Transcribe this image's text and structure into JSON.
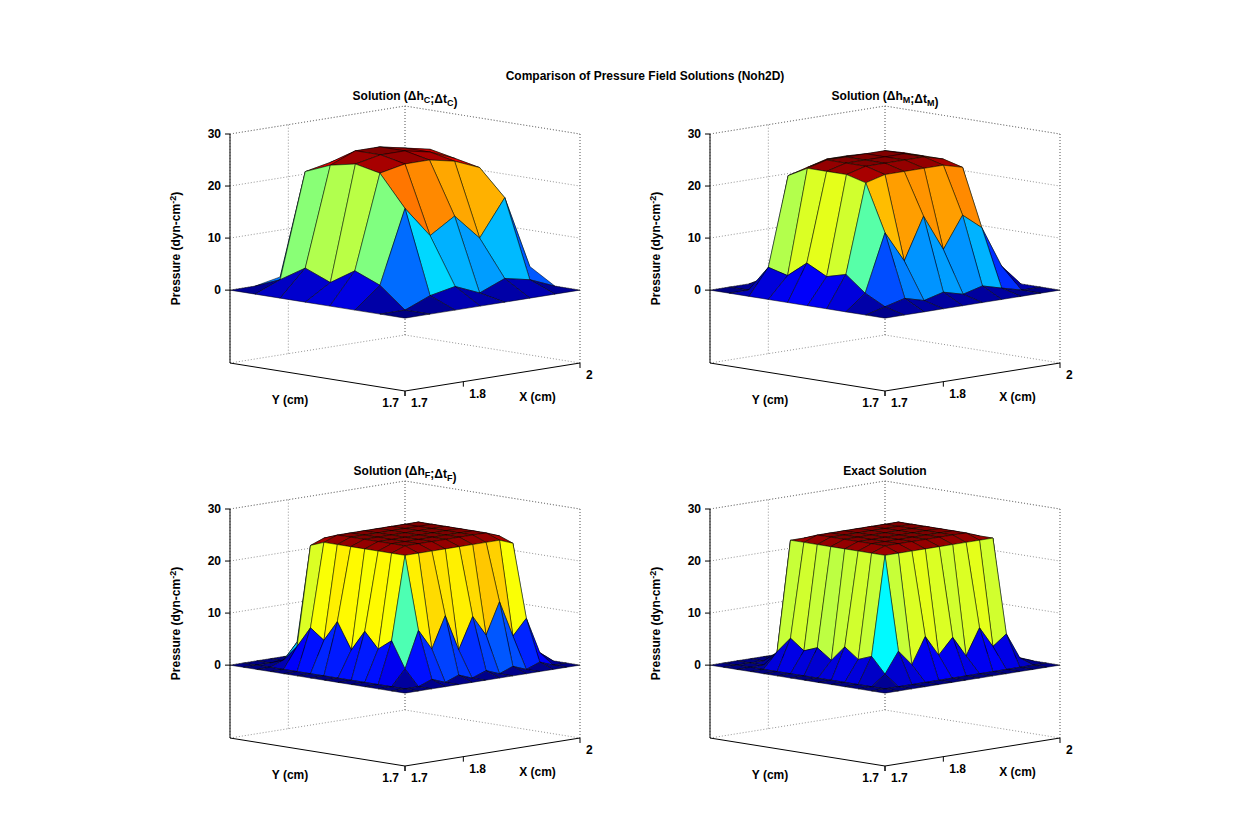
{
  "title": "Comparison of Pressure Field Solutions (Noh2D)",
  "chart_data": [
    {
      "type": "surface",
      "title": "Solution (ΔhC;ΔtC)",
      "x_label": "X (cm)",
      "y_label": "Y (cm)",
      "z_label": "Pressure (dyn-cm-2)",
      "xlim": [
        1.7,
        2
      ],
      "ylim": [
        1.7,
        2
      ],
      "zlim": [
        -14,
        30
      ],
      "xticks": [
        1.7,
        1.8,
        2
      ],
      "yticks": [
        1.7
      ],
      "zticks": [
        0,
        10,
        20,
        30
      ],
      "grid": true,
      "x": [
        1.7,
        1.743,
        1.786,
        1.829,
        1.871,
        1.914,
        1.957,
        2.0
      ],
      "y": [
        1.7,
        1.743,
        1.786,
        1.829,
        1.871,
        1.914,
        1.957,
        2.0
      ],
      "values": [
        [
          0,
          0,
          0,
          0,
          0,
          0,
          0,
          0
        ],
        [
          0,
          0,
          2,
          3,
          1,
          3,
          2,
          0
        ],
        [
          0,
          4,
          18,
          12,
          15,
          10,
          17,
          3
        ],
        [
          0,
          6,
          24,
          25,
          25,
          24,
          22,
          2
        ],
        [
          0,
          3,
          25,
          26,
          26,
          25,
          23,
          4
        ],
        [
          0,
          5,
          24,
          26,
          26,
          25,
          24,
          6
        ],
        [
          0,
          2,
          22,
          23,
          24,
          24,
          20,
          1
        ],
        [
          0,
          0,
          1,
          2,
          1,
          2,
          0,
          0
        ]
      ]
    },
    {
      "type": "surface",
      "title": "Solution (ΔhM;ΔtM)",
      "x_label": "X (cm)",
      "y_label": "Y (cm)",
      "z_label": "Pressure (dyn-cm-2)",
      "xlim": [
        1.7,
        2
      ],
      "ylim": [
        1.7,
        2
      ],
      "zlim": [
        -14,
        30
      ],
      "xticks": [
        1.7,
        1.8,
        2
      ],
      "yticks": [
        1.7
      ],
      "zticks": [
        0,
        10,
        20,
        30
      ],
      "grid": true,
      "x": [
        1.7,
        1.733,
        1.767,
        1.8,
        1.833,
        1.867,
        1.9,
        1.933,
        1.967,
        2.0
      ],
      "y": [
        1.7,
        1.733,
        1.767,
        1.8,
        1.833,
        1.867,
        1.9,
        1.933,
        1.967,
        2.0
      ],
      "values": [
        [
          0,
          0,
          0,
          0,
          0,
          0,
          0,
          0,
          0,
          0
        ],
        [
          0,
          1,
          2,
          1,
          2,
          1,
          2,
          1,
          0,
          0
        ],
        [
          0,
          3,
          14,
          8,
          16,
          9,
          15,
          12,
          4,
          0
        ],
        [
          0,
          6,
          23,
          24,
          24,
          24,
          24,
          23,
          8,
          0
        ],
        [
          0,
          5,
          24,
          25,
          25,
          25,
          25,
          24,
          7,
          0
        ],
        [
          0,
          7,
          24,
          25,
          25,
          25,
          25,
          24,
          6,
          0
        ],
        [
          0,
          4,
          24,
          25,
          25,
          25,
          25,
          24,
          9,
          0
        ],
        [
          0,
          5,
          22,
          23,
          24,
          24,
          23,
          22,
          5,
          0
        ],
        [
          0,
          0,
          2,
          3,
          2,
          3,
          2,
          1,
          0,
          0
        ],
        [
          0,
          0,
          0,
          0,
          0,
          0,
          0,
          0,
          0,
          0
        ]
      ]
    },
    {
      "type": "surface",
      "title": "Solution (ΔhF;ΔtF)",
      "x_label": "X (cm)",
      "y_label": "Y (cm)",
      "z_label": "Pressure (dyn-cm-2)",
      "xlim": [
        1.7,
        2
      ],
      "ylim": [
        1.7,
        2
      ],
      "zlim": [
        -14,
        30
      ],
      "xticks": [
        1.7,
        1.8,
        2
      ],
      "yticks": [
        1.7
      ],
      "zticks": [
        0,
        10,
        20,
        30
      ],
      "grid": true,
      "x": [
        1.7,
        1.723,
        1.746,
        1.769,
        1.792,
        1.815,
        1.838,
        1.862,
        1.885,
        1.908,
        1.931,
        1.954,
        1.977,
        2.0
      ],
      "y": [
        1.7,
        1.723,
        1.746,
        1.769,
        1.792,
        1.815,
        1.838,
        1.862,
        1.885,
        1.908,
        1.931,
        1.954,
        1.977,
        2.0
      ],
      "values": [
        [
          0,
          0,
          0,
          0,
          0,
          0,
          0,
          0,
          0,
          0,
          0,
          0,
          0,
          0
        ],
        [
          0,
          0,
          0,
          1,
          0,
          1,
          0,
          1,
          0,
          1,
          0,
          1,
          0,
          0
        ],
        [
          0,
          0,
          3,
          10,
          6,
          12,
          5,
          11,
          7,
          13,
          6,
          9,
          2,
          0
        ],
        [
          0,
          0,
          8,
          24,
          24,
          24,
          24,
          24,
          24,
          24,
          24,
          23,
          3,
          0
        ],
        [
          0,
          0,
          6,
          24,
          25,
          25,
          25,
          25,
          25,
          25,
          25,
          24,
          5,
          0
        ],
        [
          0,
          0,
          9,
          24,
          25,
          25,
          25,
          25,
          25,
          25,
          25,
          24,
          4,
          0
        ],
        [
          0,
          0,
          5,
          24,
          25,
          25,
          25,
          25,
          25,
          25,
          25,
          24,
          6,
          0
        ],
        [
          0,
          0,
          10,
          24,
          25,
          25,
          25,
          25,
          25,
          25,
          25,
          24,
          3,
          0
        ],
        [
          0,
          0,
          6,
          24,
          25,
          25,
          25,
          25,
          25,
          25,
          25,
          24,
          7,
          0
        ],
        [
          0,
          0,
          8,
          24,
          25,
          25,
          25,
          25,
          25,
          25,
          25,
          24,
          4,
          0
        ],
        [
          0,
          0,
          4,
          23,
          24,
          24,
          24,
          24,
          24,
          24,
          24,
          23,
          5,
          0
        ],
        [
          0,
          0,
          1,
          4,
          2,
          5,
          3,
          4,
          2,
          5,
          3,
          4,
          1,
          0
        ],
        [
          0,
          0,
          0,
          0,
          0,
          0,
          0,
          0,
          0,
          0,
          0,
          0,
          0,
          0
        ],
        [
          0,
          0,
          0,
          0,
          0,
          0,
          0,
          0,
          0,
          0,
          0,
          0,
          0,
          0
        ]
      ]
    },
    {
      "type": "surface",
      "title": "Exact Solution",
      "x_label": "X (cm)",
      "y_label": "Y (cm)",
      "z_label": "Pressure (dyn-cm-2)",
      "xlim": [
        1.7,
        2
      ],
      "ylim": [
        1.7,
        2
      ],
      "zlim": [
        -14,
        30
      ],
      "xticks": [
        1.7,
        1.8,
        2
      ],
      "yticks": [
        1.7
      ],
      "zticks": [
        0,
        10,
        20,
        30
      ],
      "grid": true,
      "x": [
        1.7,
        1.723,
        1.746,
        1.769,
        1.792,
        1.815,
        1.838,
        1.862,
        1.885,
        1.908,
        1.931,
        1.954,
        1.977,
        2.0
      ],
      "y": [
        1.7,
        1.723,
        1.746,
        1.769,
        1.792,
        1.815,
        1.838,
        1.862,
        1.885,
        1.908,
        1.931,
        1.954,
        1.977,
        2.0
      ],
      "values": [
        [
          0,
          0,
          0,
          0,
          0,
          0,
          0,
          0,
          0,
          0,
          0,
          0,
          0,
          0
        ],
        [
          0,
          0,
          0,
          0,
          0,
          0,
          0,
          0,
          0,
          0,
          0,
          0,
          0,
          0
        ],
        [
          0,
          0,
          2,
          6,
          3,
          8,
          4,
          7,
          3,
          8,
          4,
          6,
          1,
          0
        ],
        [
          0,
          0,
          5,
          24,
          24,
          24,
          24,
          24,
          24,
          24,
          24,
          24,
          2,
          0
        ],
        [
          0,
          0,
          4,
          24,
          25,
          25,
          25,
          25,
          25,
          25,
          25,
          24,
          3,
          0
        ],
        [
          0,
          0,
          6,
          24,
          25,
          25,
          25,
          25,
          25,
          25,
          25,
          24,
          2,
          0
        ],
        [
          0,
          0,
          3,
          24,
          25,
          25,
          25,
          25,
          25,
          25,
          25,
          24,
          4,
          0
        ],
        [
          0,
          0,
          5,
          24,
          25,
          25,
          25,
          25,
          25,
          25,
          25,
          24,
          2,
          0
        ],
        [
          0,
          0,
          4,
          24,
          25,
          25,
          25,
          25,
          25,
          25,
          25,
          24,
          3,
          0
        ],
        [
          0,
          0,
          6,
          24,
          25,
          25,
          25,
          25,
          25,
          25,
          25,
          24,
          2,
          0
        ],
        [
          0,
          0,
          3,
          24,
          24,
          24,
          24,
          24,
          24,
          24,
          24,
          24,
          4,
          0
        ],
        [
          0,
          0,
          0,
          2,
          1,
          2,
          1,
          2,
          1,
          2,
          1,
          2,
          0,
          0
        ],
        [
          0,
          0,
          0,
          0,
          0,
          0,
          0,
          0,
          0,
          0,
          0,
          0,
          0,
          0
        ],
        [
          0,
          0,
          0,
          0,
          0,
          0,
          0,
          0,
          0,
          0,
          0,
          0,
          0,
          0
        ]
      ]
    }
  ]
}
